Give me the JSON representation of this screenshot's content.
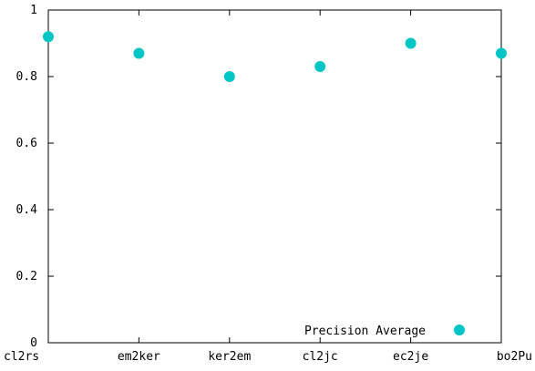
{
  "chart_data": {
    "type": "scatter",
    "categories": [
      "cl2rs",
      "em2ker",
      "ker2em",
      "cl2jc",
      "ec2je",
      "bo2Pu"
    ],
    "series": [
      {
        "name": "Precision Average",
        "values": [
          0.92,
          0.87,
          0.8,
          0.83,
          0.9,
          0.87
        ],
        "color": "#00c5c5"
      }
    ],
    "ylim": [
      0,
      1
    ],
    "yticks": [
      0,
      0.2,
      0.4,
      0.6,
      0.8,
      1
    ],
    "ytick_labels": [
      "0",
      "0.2",
      "0.4",
      "0.6",
      "0.8",
      "1"
    ],
    "legend_position": "bottom-right",
    "grid": false
  }
}
